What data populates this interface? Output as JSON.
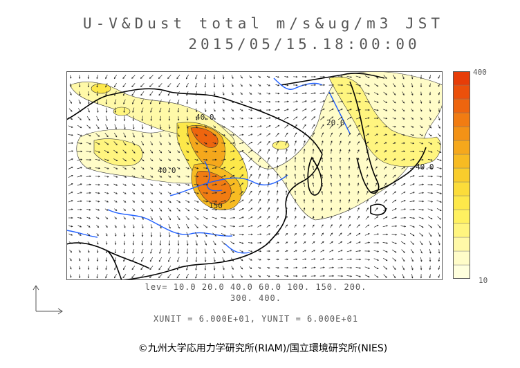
{
  "title": {
    "line1": "U-V&Dust total m/s&ug/m3 JST",
    "line2": "2015/05/15.18:00:00"
  },
  "contour_labels": [
    "40.0",
    "40.0",
    "150",
    "40.0",
    "20.0"
  ],
  "levels": {
    "line1": "lev= 10.0 20.0 40.0 60.0 100. 150. 200.",
    "line2": "300. 400."
  },
  "colorbar": {
    "max_label": "400",
    "min_label": "10",
    "colors": [
      "#ffffdd",
      "#fffcc8",
      "#fff9a8",
      "#fff57f",
      "#fff160",
      "#fde84a",
      "#fbdc3a",
      "#f9cd2c",
      "#f7bb22",
      "#f5a81c",
      "#f39216",
      "#f17c12",
      "#ee650e",
      "#eb500b",
      "#e73d08"
    ]
  },
  "vector_units": {
    "text": "XUNIT = 6.000E+01, YUNIT = 6.000E+01"
  },
  "copyright": "©九州大学応用力学研究所(RIAM)/国立環境研究所(NIES)",
  "colors": {
    "coast": "#000000",
    "river": "#1f5fff",
    "arrows": "#222222"
  }
}
